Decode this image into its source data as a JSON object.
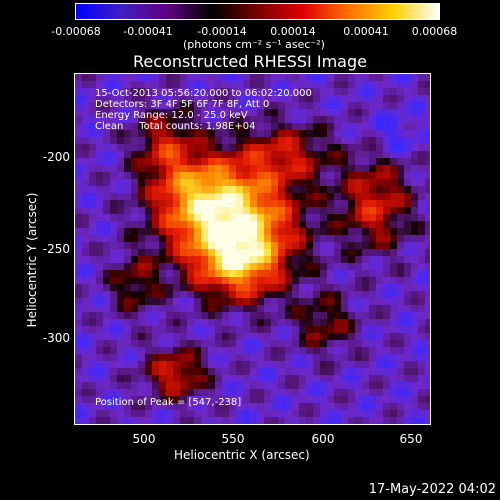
{
  "colorbar": {
    "ticks": [
      "-0.00068",
      "-0.00041",
      "-0.00014",
      "0.00014",
      "0.00041",
      "0.00068"
    ],
    "units": "(photons cm⁻² s⁻¹ asec⁻²)",
    "colors": [
      "#0000ff",
      "#4020c0",
      "#600080",
      "#000000",
      "#7a0000",
      "#e00000",
      "#ff7000",
      "#ffd000",
      "#ffffff"
    ]
  },
  "title": "Reconstructed RHESSI Image",
  "info": {
    "line1": "15-Oct-2013 05:56:20.000 to 06:02:20.000",
    "line2": "Detectors: 3F 4F 5F 6F 7F 8F, Att 0",
    "line3": "Energy Range: 12.0 - 25.0 keV",
    "line4": "Clean     Total counts: 1.98E+04",
    "peak": "Position of Peak = [547,-238]"
  },
  "axes": {
    "xlabel": "Heliocentric X (arcsec)",
    "ylabel": "Heliocentric Y (arcsec)",
    "xticks": [
      "500",
      "550",
      "600",
      "650"
    ],
    "yticks": [
      "-200",
      "-250",
      "-300"
    ]
  },
  "datestamp": "17-May-2022 04:02"
}
